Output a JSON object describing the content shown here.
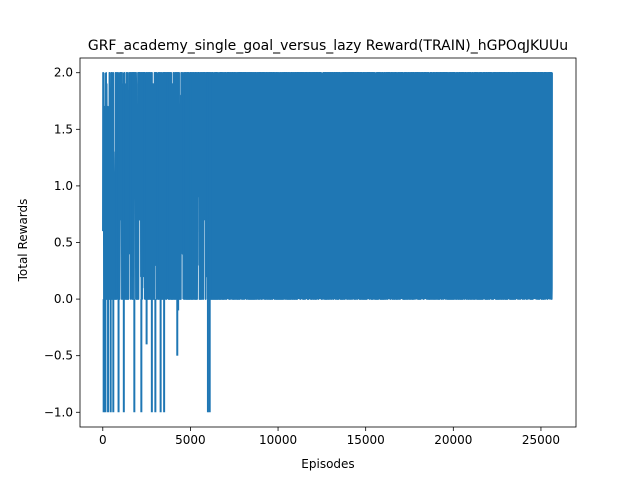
{
  "chart_data": {
    "type": "line",
    "title": "GRF_academy_single_goal_versus_lazy Reward(TRAIN)_hGPOqJKUUu",
    "xlabel": "Episodes",
    "ylabel": "Total Rewards",
    "xlim": [
      -1300,
      27000
    ],
    "ylim": [
      -1.13,
      2.13
    ],
    "x_ticks": [
      0,
      5000,
      10000,
      15000,
      20000,
      25000
    ],
    "x_tick_labels": [
      "0",
      "5000",
      "10000",
      "15000",
      "20000",
      "25000"
    ],
    "y_ticks": [
      -1.0,
      -0.5,
      0.0,
      0.5,
      1.0,
      1.5,
      2.0
    ],
    "y_tick_labels": [
      "−1.0",
      "−0.5",
      "0.0",
      "0.5",
      "1.0",
      "1.5",
      "2.0"
    ],
    "grid": false,
    "series": [
      {
        "color": "#1f77b4",
        "episode_range": [
          0,
          25650
        ],
        "value_range": [
          -1.0,
          2.0
        ],
        "min_value_excursions": [
          {
            "x": 50,
            "y": -1.0
          },
          {
            "x": 150,
            "y": -1.0
          },
          {
            "x": 300,
            "y": -1.0
          },
          {
            "x": 450,
            "y": -1.0
          },
          {
            "x": 600,
            "y": -1.0
          },
          {
            "x": 900,
            "y": -1.0
          },
          {
            "x": 1200,
            "y": -1.0
          },
          {
            "x": 1800,
            "y": -1.0
          },
          {
            "x": 2200,
            "y": -1.0
          },
          {
            "x": 2500,
            "y": -0.4
          },
          {
            "x": 2800,
            "y": -1.0
          },
          {
            "x": 3000,
            "y": -1.0
          },
          {
            "x": 3300,
            "y": -1.0
          },
          {
            "x": 3500,
            "y": -1.0
          },
          {
            "x": 4250,
            "y": -0.5
          },
          {
            "x": 4300,
            "y": -0.1
          },
          {
            "x": 6000,
            "y": -1.0
          },
          {
            "x": 6100,
            "y": -1.0
          }
        ],
        "max_value_excursions": [
          {
            "x": 150,
            "y": 2.0
          },
          {
            "x": 800,
            "y": 2.0
          },
          {
            "x": 1200,
            "y": 2.0
          },
          {
            "x": 1600,
            "y": 2.0
          },
          {
            "x": 2400,
            "y": 2.0
          },
          {
            "x": 3100,
            "y": 2.0
          },
          {
            "x": 3700,
            "y": 2.0
          },
          {
            "x": 4600,
            "y": 2.0
          },
          {
            "x": 5000,
            "y": 2.0
          },
          {
            "x": 6000,
            "y": 2.0
          }
        ]
      }
    ]
  }
}
